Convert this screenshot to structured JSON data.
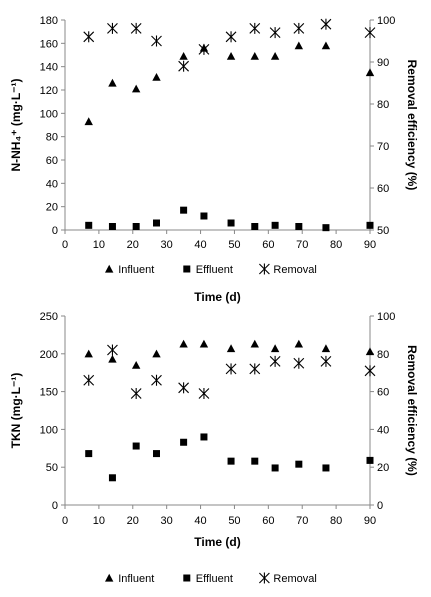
{
  "chart_data": [
    {
      "type": "scatter",
      "x": [
        7,
        14,
        21,
        27,
        35,
        41,
        49,
        56,
        62,
        69,
        77,
        90
      ],
      "xlabel": "Time (d)",
      "ylabel": "N-NH₄⁺ (mg·L⁻¹)",
      "y2label": "Removal efficiency (%)",
      "xlim": [
        0,
        90
      ],
      "ylim": [
        0,
        180
      ],
      "y2lim": [
        50,
        100
      ],
      "xticks": [
        0,
        10,
        20,
        30,
        40,
        50,
        60,
        70,
        80,
        90
      ],
      "yticks": [
        0,
        20,
        40,
        60,
        80,
        100,
        120,
        140,
        160,
        180
      ],
      "y2ticks": [
        50,
        60,
        70,
        80,
        90,
        100
      ],
      "grid": false,
      "legend_position": "bottom",
      "series": [
        {
          "name": "Influent",
          "marker": "triangle",
          "axis": "left",
          "values": [
            93,
            126,
            121,
            131,
            149,
            156,
            149,
            149,
            149,
            158,
            158,
            135
          ]
        },
        {
          "name": "Effluent",
          "marker": "square",
          "axis": "left",
          "values": [
            4,
            3,
            3,
            6,
            17,
            12,
            6,
            3,
            4,
            3,
            2,
            4
          ]
        },
        {
          "name": "Removal",
          "marker": "asterisk",
          "axis": "right",
          "values": [
            96,
            98,
            98,
            95,
            89,
            93,
            96,
            98,
            97,
            98,
            99,
            97
          ]
        }
      ]
    },
    {
      "type": "scatter",
      "x": [
        7,
        14,
        21,
        27,
        35,
        41,
        49,
        56,
        62,
        69,
        77,
        90
      ],
      "xlabel": "Time (d)",
      "ylabel": "TKN (mg·L⁻¹)",
      "y2label": "Removal efficiency (%)",
      "xlim": [
        0,
        90
      ],
      "ylim": [
        0,
        250
      ],
      "y2lim": [
        0,
        100
      ],
      "xticks": [
        0,
        10,
        20,
        30,
        40,
        50,
        60,
        70,
        80,
        90
      ],
      "yticks": [
        0,
        50,
        100,
        150,
        200,
        250
      ],
      "y2ticks": [
        0,
        20,
        40,
        60,
        80,
        100
      ],
      "grid": false,
      "legend_position": "bottom",
      "series": [
        {
          "name": "Influent",
          "marker": "triangle",
          "axis": "left",
          "values": [
            200,
            193,
            185,
            200,
            213,
            213,
            207,
            213,
            207,
            213,
            207,
            203
          ]
        },
        {
          "name": "Effluent",
          "marker": "square",
          "axis": "left",
          "values": [
            68,
            36,
            78,
            68,
            83,
            90,
            58,
            58,
            49,
            54,
            49,
            59
          ]
        },
        {
          "name": "Removal",
          "marker": "asterisk",
          "axis": "right",
          "values": [
            66,
            82,
            59,
            66,
            62,
            59,
            72,
            72,
            76,
            75,
            76,
            71
          ]
        }
      ]
    }
  ]
}
